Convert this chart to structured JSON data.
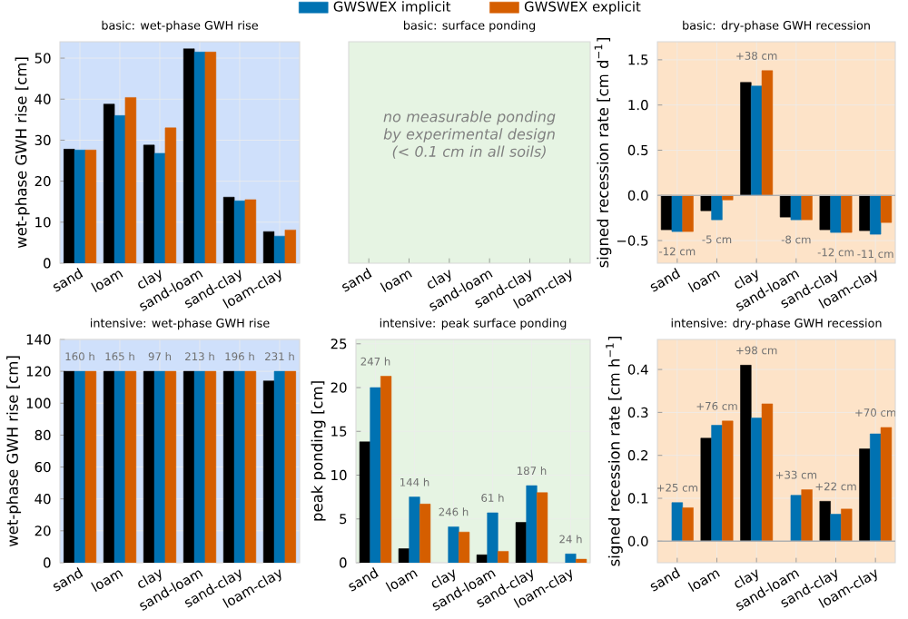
{
  "chart_data": [
    {
      "type": "bar",
      "title": "basic: wet-phase GWH rise",
      "ylabel": "wet-phase GWH rise [cm]",
      "categories": [
        "sand",
        "loam",
        "clay",
        "sand-loam",
        "sand-clay",
        "loam-clay"
      ],
      "ylim": [
        0,
        54
      ],
      "yticks": [
        0,
        10,
        20,
        30,
        40,
        50
      ],
      "grid": true,
      "legend": "top",
      "series": [
        {
          "color": "#000000",
          "values": [
            27.8,
            38.8,
            28.8,
            52.3,
            16.1,
            7.7
          ]
        },
        {
          "name": "GWSWEX implicit",
          "color": "#0072b2",
          "values": [
            27.6,
            36.0,
            26.8,
            51.5,
            15.2,
            6.6
          ]
        },
        {
          "name": "GWSWEX explicit",
          "color": "#d55e00",
          "values": [
            27.6,
            40.4,
            33.0,
            51.5,
            15.5,
            8.1
          ]
        }
      ]
    },
    {
      "type": "other",
      "title": "basic: surface ponding",
      "categories": [
        "sand",
        "loam",
        "clay",
        "sand-loam",
        "sand-clay",
        "loam-clay"
      ],
      "annotations": [
        "*no measurable ponding by experimental design (< 0.1 cm in all soils)*"
      ]
    },
    {
      "type": "bar",
      "title": "basic: dry-phase GWH recession",
      "ylabel": "signed recession rate [cm d$^{−1}$]",
      "categories": [
        "sand",
        "loam",
        "clay",
        "sand-loam",
        "sand-clay",
        "loam-clay"
      ],
      "ylim": [
        -0.75,
        1.7
      ],
      "yticks": [
        {
          "value": -0.5,
          "label": "−0.5"
        },
        {
          "value": 0,
          "label": "0.0"
        },
        0.5,
        {
          "value": 1,
          "label": "1.0"
        },
        1.5
      ],
      "grid": true,
      "ref_lines": [
        {
          "axis": "y",
          "value": 0,
          "color": "#b0b0b0"
        }
      ],
      "annotations": [
        {
          "text": "-12 cm",
          "x": "sand",
          "y": -0.4
        },
        {
          "text": "-5 cm",
          "x": "loam",
          "y": -0.27
        },
        {
          "text": "+38 cm",
          "x": "clay",
          "y": 1.38
        },
        {
          "text": "-8 cm",
          "x": "sand-loam",
          "y": -0.27
        },
        {
          "text": "-12 cm",
          "x": "sand-clay",
          "y": -0.41
        },
        {
          "text": "-11 cm",
          "x": "loam-clay",
          "y": -0.43
        }
      ],
      "series": [
        {
          "color": "#000000",
          "values": [
            -0.38,
            -0.17,
            1.25,
            -0.24,
            -0.38,
            -0.39
          ]
        },
        {
          "color": "#0072b2",
          "values": [
            -0.4,
            -0.27,
            1.21,
            -0.27,
            -0.41,
            -0.43
          ]
        },
        {
          "color": "#d55e00",
          "values": [
            -0.4,
            -0.05,
            1.38,
            -0.27,
            -0.41,
            -0.3
          ]
        }
      ]
    },
    {
      "type": "bar",
      "title": "intensive: wet-phase GWH rise",
      "ylabel": "wet-phase GWH rise [cm]",
      "categories": [
        "sand",
        "loam",
        "clay",
        "sand-loam",
        "sand-clay",
        "loam-clay"
      ],
      "ylim": [
        0,
        140
      ],
      "yticks": [
        0,
        20,
        40,
        60,
        80,
        100,
        120,
        140
      ],
      "grid": true,
      "annotations": [
        {
          "text": "160 h",
          "x": "sand",
          "y": 120
        },
        {
          "text": "165 h",
          "x": "loam",
          "y": 120
        },
        {
          "text": "97 h",
          "x": "clay",
          "y": 120
        },
        {
          "text": "213 h",
          "x": "sand-loam",
          "y": 120
        },
        {
          "text": "196 h",
          "x": "sand-clay",
          "y": 120
        },
        {
          "text": "231 h",
          "x": "loam-clay",
          "y": 120
        }
      ],
      "series": [
        {
          "color": "#000000",
          "values": [
            120,
            120,
            120,
            120,
            120,
            114
          ]
        },
        {
          "color": "#0072b2",
          "values": [
            120,
            120,
            120,
            120,
            120,
            120
          ]
        },
        {
          "color": "#d55e00",
          "values": [
            120,
            120,
            120,
            120,
            120,
            120
          ]
        }
      ]
    },
    {
      "type": "bar",
      "title": "intensive: peak surface ponding",
      "ylabel": "peak ponding [cm]",
      "categories": [
        "sand",
        "loam",
        "clay",
        "sand-loam",
        "sand-clay",
        "loam-clay"
      ],
      "ylim": [
        0,
        25.5
      ],
      "yticks": [
        0,
        5,
        10,
        15,
        20,
        25
      ],
      "grid": true,
      "annotations": [
        {
          "text": "247 h",
          "x": "sand",
          "y": 21.3
        },
        {
          "text": "144 h",
          "x": "loam",
          "y": 7.5
        },
        {
          "text": "246 h",
          "x": "clay",
          "y": 4.1
        },
        {
          "text": "61 h",
          "x": "sand-loam",
          "y": 5.7
        },
        {
          "text": "187 h",
          "x": "sand-clay",
          "y": 8.8
        },
        {
          "text": "24 h",
          "x": "loam-clay",
          "y": 1.0
        }
      ],
      "series": [
        {
          "color": "#000000",
          "values": [
            13.8,
            1.6,
            null,
            0.9,
            4.6,
            null
          ]
        },
        {
          "color": "#0072b2",
          "values": [
            20.0,
            7.5,
            4.1,
            5.7,
            8.8,
            1.0
          ]
        },
        {
          "color": "#d55e00",
          "values": [
            21.3,
            6.7,
            3.5,
            1.3,
            8.0,
            0.4
          ]
        }
      ]
    },
    {
      "type": "bar",
      "title": "intensive: dry-phase GWH recession",
      "ylabel": "signed recession rate [cm h$^{−1}$]",
      "categories": [
        "sand",
        "loam",
        "clay",
        "sand-loam",
        "sand-clay",
        "loam-clay"
      ],
      "ylim": [
        -0.05,
        0.47
      ],
      "yticks": [
        {
          "value": 0,
          "label": "0.0"
        },
        0.1,
        0.2,
        0.3,
        0.4
      ],
      "grid": true,
      "ref_lines": [
        {
          "axis": "y",
          "value": 0,
          "color": "#b0b0b0"
        }
      ],
      "annotations": [
        {
          "text": "+25 cm",
          "x": "sand",
          "y": 0.09
        },
        {
          "text": "+76 cm",
          "x": "loam",
          "y": 0.28
        },
        {
          "text": "+98 cm",
          "x": "clay",
          "y": 0.41
        },
        {
          "text": "+33 cm",
          "x": "sand-loam",
          "y": 0.12
        },
        {
          "text": "+22 cm",
          "x": "sand-clay",
          "y": 0.093
        },
        {
          "text": "+70 cm",
          "x": "loam-clay",
          "y": 0.265
        }
      ],
      "series": [
        {
          "color": "#000000",
          "values": [
            null,
            0.24,
            0.41,
            null,
            0.093,
            0.215
          ]
        },
        {
          "color": "#0072b2",
          "values": [
            0.09,
            0.27,
            0.287,
            0.107,
            0.063,
            0.25
          ]
        },
        {
          "color": "#d55e00",
          "values": [
            0.078,
            0.28,
            0.32,
            0.12,
            0.075,
            0.265
          ]
        }
      ]
    }
  ]
}
